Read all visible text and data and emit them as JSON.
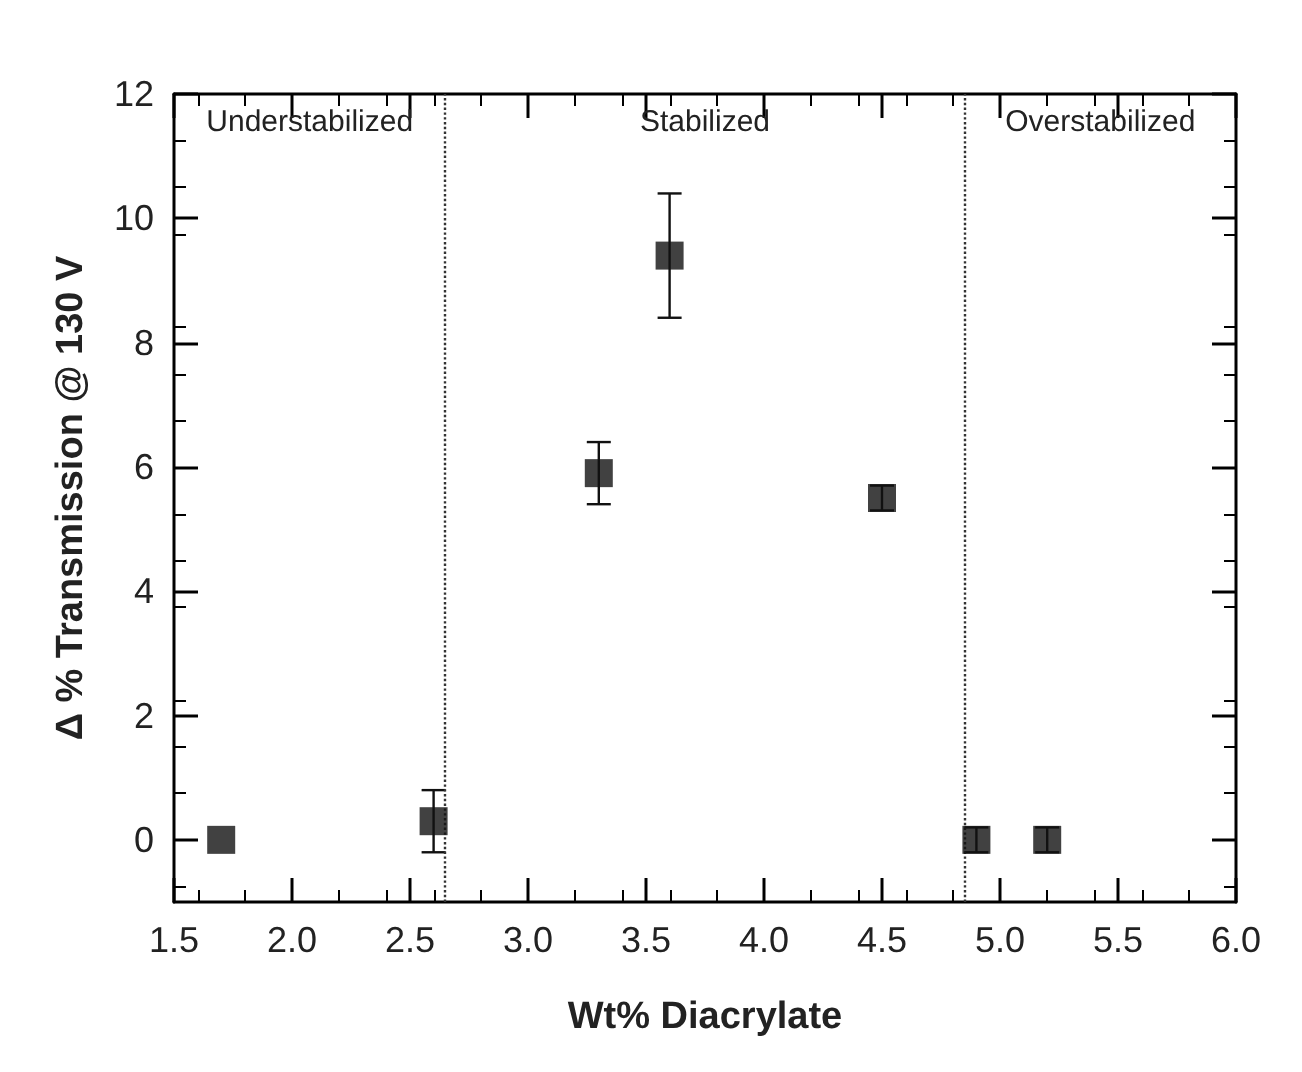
{
  "chart_data": {
    "type": "scatter",
    "xlabel": "Wt% Diacrylate",
    "ylabel": "Δ % Transmission @ 130 V",
    "x": [
      1.7,
      2.6,
      3.3,
      3.6,
      4.5,
      4.9,
      5.2
    ],
    "values": [
      0,
      0.3,
      5.9,
      9.4,
      5.5,
      0,
      0
    ],
    "errors": [
      null,
      0.5,
      0.5,
      1.0,
      0.2,
      0.2,
      0.2
    ],
    "color": "#111111",
    "marker": "square",
    "xlim": [
      1.5,
      6.0
    ],
    "xticks": [
      1.5,
      {
        "value": 2,
        "label": "2.0"
      },
      2.5,
      {
        "value": 3,
        "label": "3.0"
      },
      3.5,
      {
        "value": 4,
        "label": "4.0"
      },
      4.5,
      {
        "value": 5,
        "label": "5.0"
      },
      5.5,
      {
        "value": 6,
        "label": "6.0"
      }
    ],
    "ylim": [
      -1,
      12
    ],
    "yticks": [
      0,
      2,
      4,
      6,
      8,
      10,
      12
    ],
    "ref_lines": [
      {
        "axis": "x",
        "value": 2.65,
        "line_style": "dotted",
        "color": "#333333"
      },
      {
        "axis": "x",
        "value": 4.85,
        "line_style": "dotted",
        "color": "#333333"
      }
    ],
    "annotations": [
      "Understabilized",
      "Stabilized",
      "Overstabilized"
    ],
    "grid": false
  }
}
